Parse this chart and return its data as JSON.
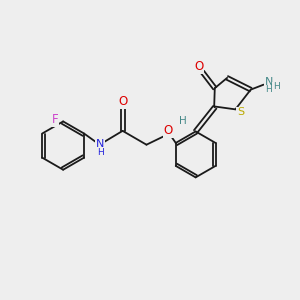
{
  "bg_color": "#eeeeee",
  "bond_color": "#1a1a1a",
  "figsize": [
    3.0,
    3.0
  ],
  "dpi": 100,
  "colors": {
    "F": "#cc44cc",
    "O": "#dd0000",
    "N": "#2222dd",
    "NH": "#2222dd",
    "NH2": "#448888",
    "S": "#bbaa00",
    "H": "#448888",
    "C": "#1a1a1a"
  }
}
